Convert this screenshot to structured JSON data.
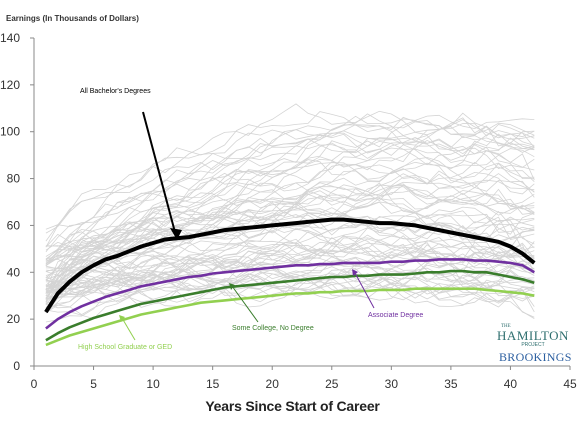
{
  "chart_data": {
    "type": "line",
    "ylabel": "Earnings (In Thousands of Dollars)",
    "xlabel": "Years Since Start of Career",
    "xlim": [
      0,
      45
    ],
    "ylim": [
      0,
      140
    ],
    "xticks": [
      0,
      5,
      10,
      15,
      20,
      25,
      30,
      35,
      40,
      45
    ],
    "yticks": [
      0,
      20,
      40,
      60,
      80,
      100,
      120,
      140
    ],
    "grid": false,
    "x": [
      1,
      2,
      3,
      4,
      5,
      6,
      7,
      8,
      9,
      10,
      11,
      12,
      13,
      14,
      15,
      16,
      17,
      18,
      19,
      20,
      21,
      22,
      23,
      24,
      25,
      26,
      27,
      28,
      29,
      30,
      31,
      32,
      33,
      34,
      35,
      36,
      37,
      38,
      39,
      40,
      41,
      42
    ],
    "series": [
      {
        "name": "All Bachelor's Degrees",
        "color": "#000000",
        "values": [
          23,
          31,
          36,
          40,
          43,
          45.5,
          47,
          49,
          51,
          52.5,
          54,
          54.5,
          55,
          56,
          57,
          58,
          58.5,
          59,
          59.5,
          60,
          60.5,
          61,
          61.5,
          62,
          62.5,
          62.5,
          62,
          61.5,
          61,
          61,
          60.5,
          60,
          59,
          58,
          57,
          56,
          55,
          54,
          53,
          51,
          48,
          44
        ]
      },
      {
        "name": "Associate Degree",
        "color": "#7030a0",
        "values": [
          16,
          20,
          23,
          25.5,
          27.5,
          29.5,
          31,
          32.5,
          34,
          35,
          36,
          37,
          38,
          38.5,
          39.5,
          40,
          40.5,
          41,
          41.5,
          42,
          42.5,
          43,
          43,
          43.5,
          43.5,
          44,
          44,
          44,
          44,
          44.5,
          44.5,
          45,
          45,
          45.5,
          45.5,
          45.5,
          45,
          45,
          44.5,
          44,
          43,
          40
        ]
      },
      {
        "name": "Some College, No Degree",
        "color": "#3a7d2c",
        "values": [
          11,
          14,
          16.5,
          18.5,
          20.5,
          22,
          23.5,
          25,
          26.5,
          27.5,
          28.5,
          29.5,
          30.5,
          31.5,
          32.5,
          33.5,
          34,
          34.5,
          35,
          35.5,
          36,
          36.5,
          37,
          37.5,
          38,
          38,
          38.5,
          38.5,
          39,
          39,
          39,
          39.5,
          40,
          40,
          40.5,
          40.5,
          40,
          40,
          39,
          38,
          37,
          35.5
        ]
      },
      {
        "name": "High School Graduate or GED",
        "color": "#92d050",
        "values": [
          9,
          11,
          13,
          14.5,
          16,
          17.5,
          19,
          20.5,
          22,
          23,
          24,
          25,
          26,
          27,
          27.5,
          28,
          28.5,
          29,
          29.5,
          30,
          30.5,
          31,
          31,
          31.5,
          31.5,
          32,
          32,
          32,
          32.5,
          32.5,
          32.5,
          33,
          33,
          33,
          33,
          33,
          33,
          32.5,
          32,
          31.5,
          31,
          30
        ]
      }
    ],
    "background_series_count": 80,
    "background_color": "#d4d4d4"
  },
  "annotations": {
    "bachelors": "All Bachelor's Degrees",
    "associate": "Associate Degree",
    "some_college": "Some College, No Degree",
    "high_school": "High School Graduate or GED"
  },
  "logo": {
    "the": "THE",
    "hamilton": "HAMILTON",
    "project": "PROJECT",
    "brookings": "BROOKINGS"
  }
}
